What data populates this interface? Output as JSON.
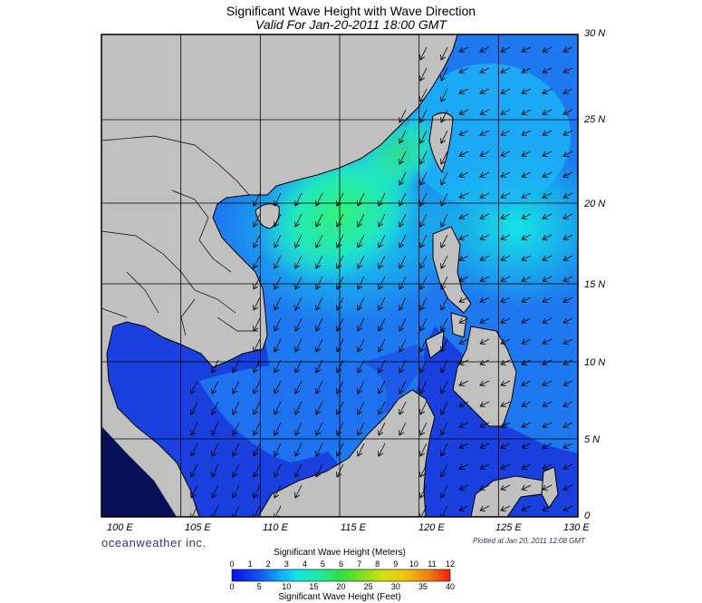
{
  "title": "Significant Wave Height with Wave Direction",
  "subtitle": "Valid For Jan-20-2011 18:00 GMT",
  "brand": "oceanweather inc.",
  "plotted": "Plotted at Jan 20, 2011 12:08 GMT",
  "lat_labels": [
    "30 N",
    "25 N",
    "20 N",
    "15 N",
    "10 N",
    "5 N",
    "0"
  ],
  "lon_labels": [
    "100 E",
    "105 E",
    "110 E",
    "115 E",
    "120 E",
    "125 E",
    "130 E"
  ],
  "colorbar": {
    "meters_title": "Significant Wave Height (Meters)",
    "feet_title": "Significant Wave Height (Feet)",
    "meters_ticks": [
      "0",
      "1",
      "2",
      "3",
      "4",
      "5",
      "6",
      "7",
      "8",
      "9",
      "10",
      "11",
      "12"
    ],
    "feet_ticks": [
      "0",
      "5",
      "10",
      "15",
      "20",
      "25",
      "30",
      "35",
      "40"
    ]
  },
  "map": {
    "lon_range": [
      100,
      130
    ],
    "lat_range": [
      0,
      30
    ],
    "land_color": "#c0c0c0",
    "wave_direction": "towards south-west (north-east monsoon swell)"
  }
}
